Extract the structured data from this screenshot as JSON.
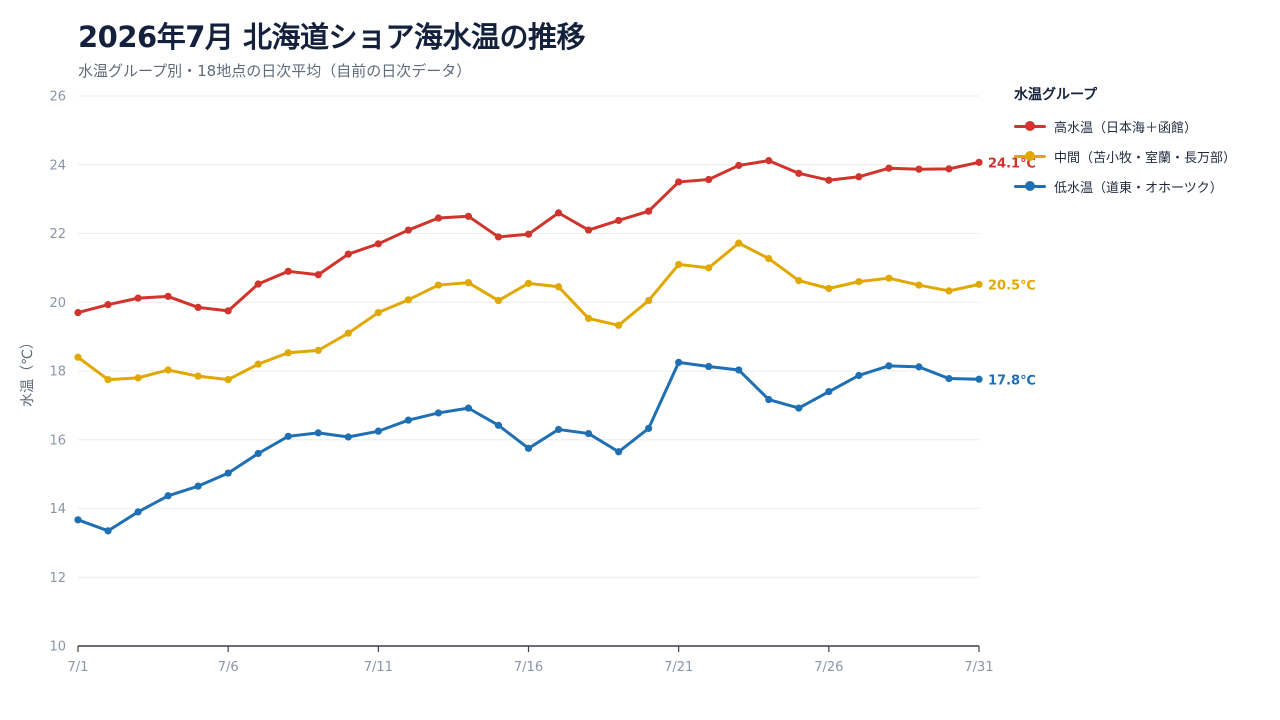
{
  "title": "2026年7月 北海道ショア海水温の推移",
  "subtitle": "水温グループ別・18地点の日次平均（自前の日次データ）",
  "legend": {
    "title": "水温グループ",
    "placement": "top-right"
  },
  "chart_data": {
    "type": "line",
    "title": "2026年7月 北海道ショア海水温の推移",
    "subtitle": "水温グループ別・18地点の日次平均（自前の日次データ）",
    "xlabel": "",
    "ylabel": "水温（℃）",
    "ylim": [
      10,
      26
    ],
    "yticks": [
      10,
      12,
      14,
      16,
      18,
      20,
      22,
      24,
      26
    ],
    "xticks": [
      "7/1",
      "7/6",
      "7/11",
      "7/16",
      "7/21",
      "7/26",
      "7/31"
    ],
    "grid": true,
    "x": [
      "7/1",
      "7/2",
      "7/3",
      "7/4",
      "7/5",
      "7/6",
      "7/7",
      "7/8",
      "7/9",
      "7/10",
      "7/11",
      "7/12",
      "7/13",
      "7/14",
      "7/15",
      "7/16",
      "7/17",
      "7/18",
      "7/19",
      "7/20",
      "7/21",
      "7/22",
      "7/23",
      "7/24",
      "7/25",
      "7/26",
      "7/27",
      "7/28",
      "7/29",
      "7/30",
      "7/31"
    ],
    "series": [
      {
        "name": "高水温（日本海＋函館）",
        "color": "#d0342c",
        "end_label": "24.1℃",
        "values": [
          19.7,
          19.93,
          20.12,
          20.17,
          19.85,
          19.75,
          20.53,
          20.9,
          20.8,
          21.4,
          21.7,
          22.1,
          22.45,
          22.5,
          21.9,
          21.98,
          22.6,
          22.1,
          22.38,
          22.65,
          23.5,
          23.57,
          23.98,
          24.12,
          23.75,
          23.55,
          23.65,
          23.9,
          23.87,
          23.88,
          24.07
        ]
      },
      {
        "name": "中間（苫小牧・室蘭・長万部）",
        "color": "#e0a800",
        "end_label": "20.5℃",
        "values": [
          18.4,
          17.75,
          17.8,
          18.03,
          17.85,
          17.75,
          18.2,
          18.53,
          18.6,
          19.1,
          19.7,
          20.07,
          20.5,
          20.57,
          20.05,
          20.55,
          20.45,
          19.53,
          19.33,
          20.05,
          21.1,
          21.0,
          21.72,
          21.27,
          20.63,
          20.4,
          20.6,
          20.7,
          20.5,
          20.33,
          20.52
        ]
      },
      {
        "name": "低水温（道東・オホーツク）",
        "color": "#1f6fb4",
        "end_label": "17.8℃",
        "values": [
          13.67,
          13.35,
          13.9,
          14.37,
          14.65,
          15.03,
          15.6,
          16.1,
          16.2,
          16.08,
          16.25,
          16.57,
          16.78,
          16.92,
          16.42,
          15.75,
          16.3,
          16.18,
          15.65,
          16.33,
          18.25,
          18.13,
          18.03,
          17.17,
          16.92,
          17.4,
          17.87,
          18.15,
          18.12,
          17.78,
          17.76
        ]
      }
    ]
  }
}
